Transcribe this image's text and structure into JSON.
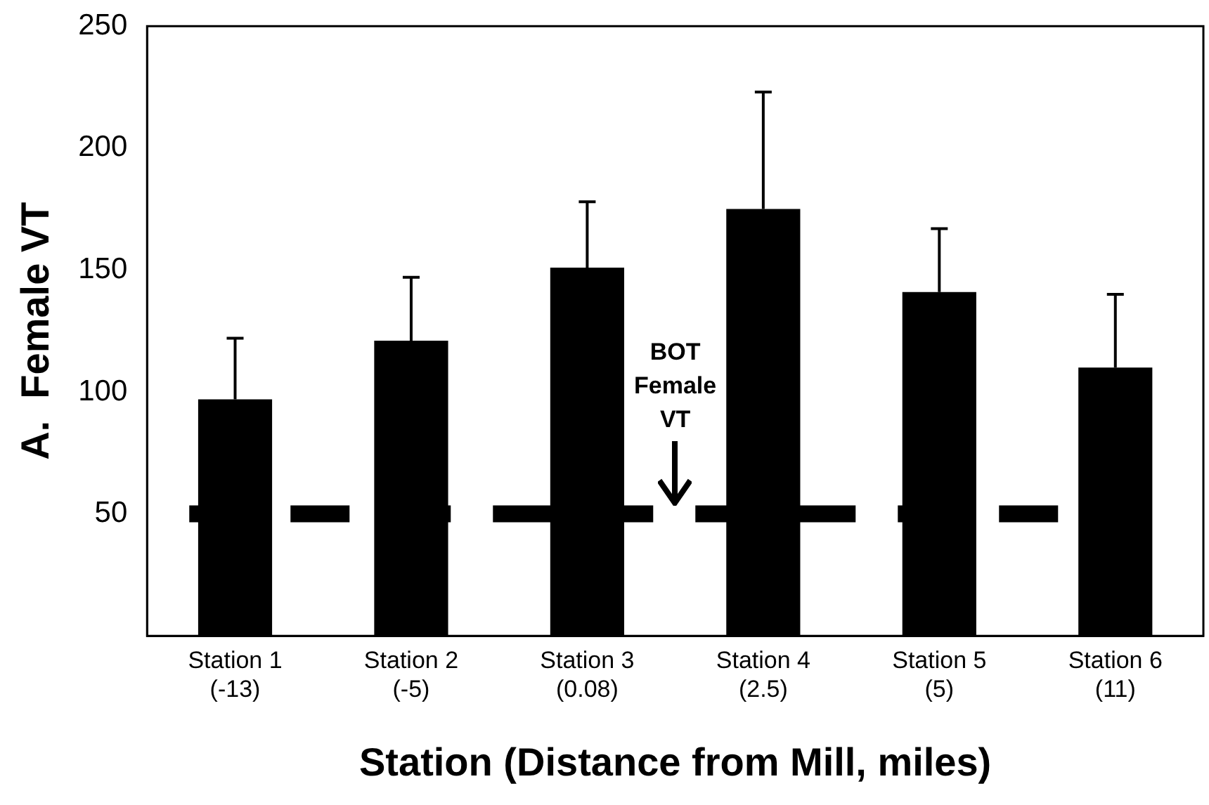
{
  "chart_data": {
    "type": "bar",
    "xlabel": "Station (Distance from Mill, miles)",
    "ylabel": "A.  Female VT",
    "categories": [
      "Station 1\n(-13)",
      "Station 2\n(-5)",
      "Station 3\n(0.08)",
      "Station 4\n(2.5)",
      "Station 5\n(5)",
      "Station 6\n(11)"
    ],
    "values": [
      97,
      121,
      151,
      175,
      141,
      110
    ],
    "errors": [
      [
        97,
        122
      ],
      [
        121,
        147
      ],
      [
        151,
        178
      ],
      [
        175,
        223
      ],
      [
        141,
        167
      ],
      [
        110,
        140
      ]
    ],
    "color": "#000000",
    "ylim": [
      0,
      250
    ],
    "yticks": [
      50,
      100,
      150,
      200,
      250
    ],
    "grid": false,
    "legend": false,
    "ref_lines": [
      {
        "axis": "y",
        "value": 50,
        "label": "BOT Female VT",
        "color": "#000000",
        "line_style": "dashed"
      }
    ]
  }
}
